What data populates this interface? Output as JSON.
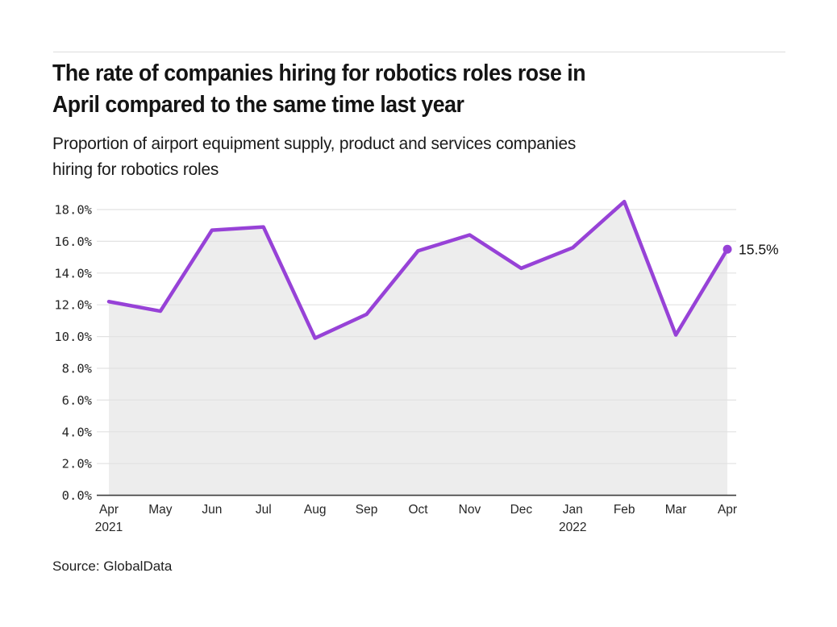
{
  "header": {
    "title_line1": "The rate of companies hiring for robotics roles rose in",
    "title_line2": "April compared to the same time last year",
    "subtitle_line1": "Proportion of airport equipment supply, product and services companies",
    "subtitle_line2": "hiring for robotics roles"
  },
  "footer": {
    "source": "Source: GlobalData"
  },
  "chart_data": {
    "type": "area",
    "title": "The rate of companies hiring for robotics roles rose in April compared to the same time last year",
    "subtitle": "Proportion of airport equipment supply, product and services companies hiring for robotics roles",
    "unit": "%",
    "grid": true,
    "legend": false,
    "x_axis": {
      "categories": [
        "Apr",
        "May",
        "Jun",
        "Jul",
        "Aug",
        "Sep",
        "Oct",
        "Nov",
        "Dec",
        "Jan",
        "Feb",
        "Mar",
        "Apr"
      ],
      "years": {
        "0": "2021",
        "9": "2022"
      }
    },
    "y_axis": {
      "tick_values": [
        0,
        2,
        4,
        6,
        8,
        10,
        12,
        14,
        16,
        18
      ],
      "tick_labels": [
        "0.0%",
        "2.0%",
        "4.0%",
        "6.0%",
        "8.0%",
        "10.0%",
        "12.0%",
        "14.0%",
        "16.0%",
        "18.0%"
      ],
      "ylim": [
        0,
        18
      ]
    },
    "values": [
      12.2,
      11.6,
      16.7,
      16.9,
      9.9,
      11.4,
      15.4,
      16.4,
      14.3,
      15.6,
      18.5,
      10.1,
      15.5
    ],
    "end_label": "15.5%",
    "colors": {
      "line": "#9742d7",
      "area_fill": "#ededed",
      "gridline": "#e2e2e2",
      "axis": "#3c3c3c"
    }
  }
}
